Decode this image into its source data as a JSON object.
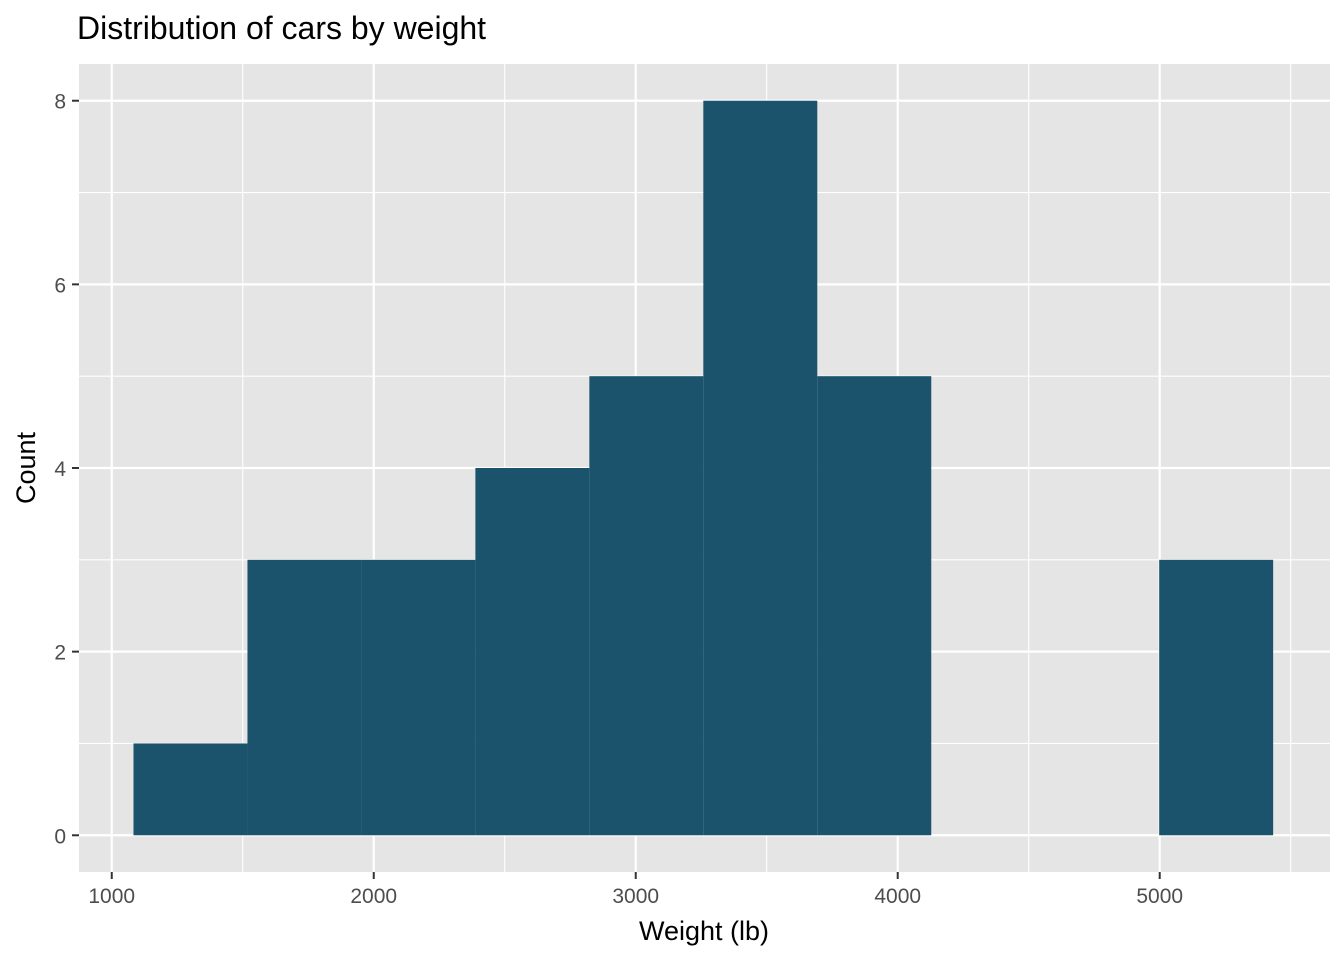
{
  "chart_data": {
    "type": "bar",
    "title": "Distribution of cars by weight",
    "xlabel": "Weight (lb)",
    "ylabel": "Count",
    "bins": [
      {
        "start": 1083,
        "end": 1518,
        "count": 1
      },
      {
        "start": 1518,
        "end": 1953,
        "count": 3
      },
      {
        "start": 1953,
        "end": 2388,
        "count": 3
      },
      {
        "start": 2388,
        "end": 2823,
        "count": 4
      },
      {
        "start": 2823,
        "end": 3258,
        "count": 5
      },
      {
        "start": 3258,
        "end": 3693,
        "count": 8
      },
      {
        "start": 3693,
        "end": 4128,
        "count": 5
      },
      {
        "start": 4128,
        "end": 4563,
        "count": 0
      },
      {
        "start": 4563,
        "end": 4998,
        "count": 0
      },
      {
        "start": 4998,
        "end": 5433,
        "count": 3
      }
    ],
    "xticks": [
      1000,
      2000,
      3000,
      4000,
      5000
    ],
    "xtick_labels": [
      "1000",
      "2000",
      "3000",
      "4000",
      "5000"
    ],
    "yticks": [
      0,
      2,
      4,
      6,
      8
    ],
    "ytick_labels": [
      "0",
      "2",
      "4",
      "6",
      "8"
    ],
    "xlim": [
      875,
      5650
    ],
    "ylim": [
      -0.4,
      8.4
    ],
    "grid": true,
    "legend": "none",
    "colors": {
      "bar": "#1B536D",
      "panel": "#E5E5E5",
      "grid": "#FFFFFF",
      "tick_text": "#4D4D4D",
      "tick_mark": "#333333"
    }
  }
}
